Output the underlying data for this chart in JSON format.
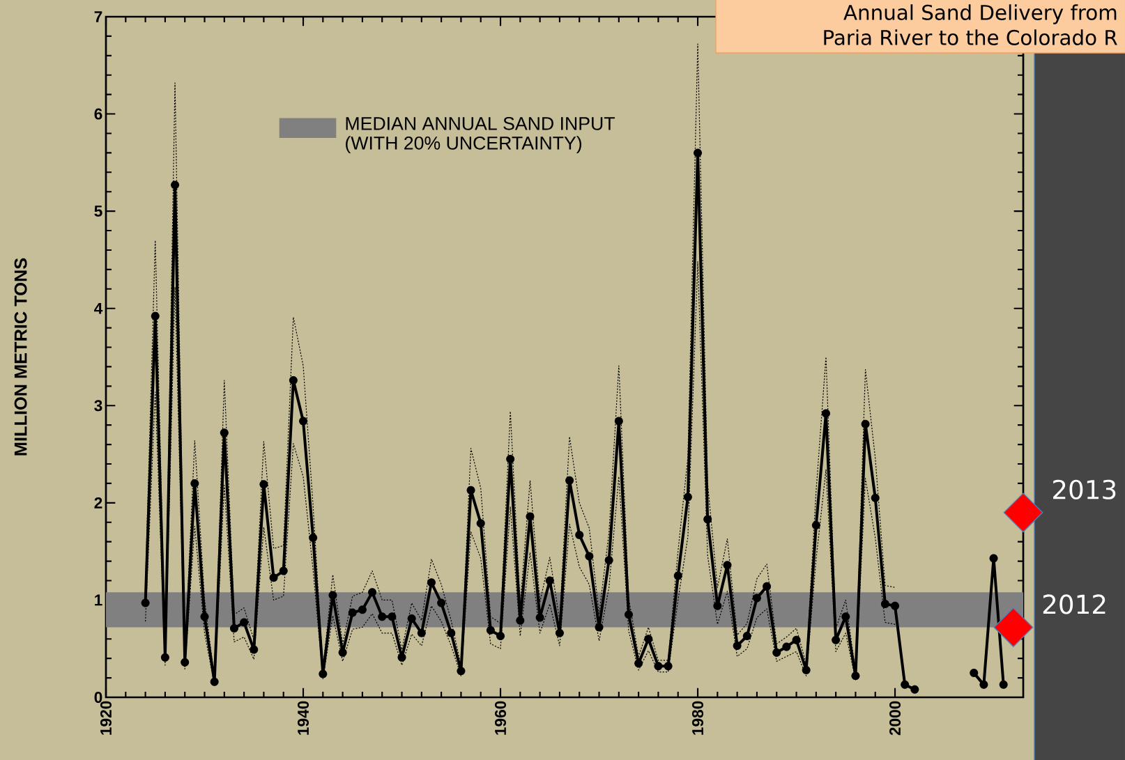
{
  "chart_data": {
    "type": "line",
    "title": "Annual Sand Delivery from",
    "subtitle": "Paria River to the Colorado R",
    "ylabel": "MILLION METRIC TONS",
    "x": [
      1924,
      1925,
      1926,
      1927,
      1928,
      1929,
      1930,
      1931,
      1932,
      1933,
      1934,
      1935,
      1936,
      1937,
      1938,
      1939,
      1940,
      1941,
      1942,
      1943,
      1944,
      1945,
      1946,
      1947,
      1948,
      1949,
      1950,
      1951,
      1952,
      1953,
      1954,
      1955,
      1956,
      1957,
      1958,
      1959,
      1960,
      1961,
      1962,
      1963,
      1964,
      1965,
      1966,
      1967,
      1968,
      1969,
      1970,
      1971,
      1972,
      1973,
      1974,
      1975,
      1976,
      1977,
      1978,
      1979,
      1980,
      1981,
      1982,
      1983,
      1984,
      1985,
      1986,
      1987,
      1988,
      1989,
      1990,
      1991,
      1992,
      1993,
      1994,
      1995,
      1996,
      1997,
      1998,
      1999,
      2000,
      2001,
      2002,
      2003,
      2004,
      2005,
      2006,
      2007,
      2008,
      2009,
      2010,
      2011
    ],
    "series": [
      {
        "color": "#000000",
        "marker": "circle",
        "values": [
          0.97,
          3.92,
          0.41,
          5.27,
          0.36,
          2.2,
          0.83,
          0.16,
          2.72,
          0.71,
          0.77,
          0.49,
          2.19,
          1.23,
          1.3,
          3.26,
          2.84,
          1.64,
          0.24,
          1.05,
          0.46,
          0.87,
          0.9,
          1.08,
          0.83,
          0.83,
          0.41,
          0.81,
          0.66,
          1.18,
          0.97,
          0.66,
          0.27,
          2.13,
          1.79,
          0.69,
          0.63,
          2.45,
          0.79,
          1.86,
          0.82,
          1.2,
          0.66,
          2.23,
          1.67,
          1.45,
          0.72,
          1.41,
          2.84,
          0.85,
          0.35,
          0.6,
          0.32,
          0.32,
          1.25,
          2.06,
          5.6,
          1.83,
          0.94,
          1.36,
          0.53,
          0.63,
          1.02,
          1.14,
          0.46,
          0.52,
          0.59,
          0.28,
          1.77,
          2.92,
          0.59,
          0.83,
          0.22,
          2.81,
          2.05,
          0.96,
          0.94,
          0.13,
          0.08,
          null,
          null,
          null,
          null,
          null,
          0.25,
          0.13,
          1.43,
          0.13
        ]
      },
      {
        "type": "line",
        "color": "#000000",
        "marker": "none",
        "line_style": "dotted",
        "values": [
          1.16,
          4.7,
          0.49,
          6.32,
          0.43,
          2.64,
          1.0,
          0.19,
          3.26,
          0.85,
          0.92,
          0.59,
          2.63,
          1.53,
          1.56,
          3.91,
          3.41,
          1.97,
          0.29,
          1.26,
          0.55,
          1.04,
          1.08,
          1.3,
          1.0,
          1.0,
          0.49,
          0.97,
          0.79,
          1.42,
          1.16,
          0.79,
          0.32,
          2.56,
          2.15,
          0.83,
          0.76,
          2.94,
          0.95,
          2.23,
          0.98,
          1.44,
          0.79,
          2.68,
          2.0,
          1.74,
          0.86,
          1.69,
          3.41,
          1.02,
          0.42,
          0.72,
          0.38,
          0.38,
          1.5,
          2.47,
          6.72,
          2.2,
          1.13,
          1.63,
          0.64,
          0.76,
          1.22,
          1.37,
          0.55,
          0.62,
          0.71,
          0.34,
          2.12,
          3.5,
          0.71,
          1.0,
          0.26,
          3.37,
          2.46,
          1.15,
          1.13,
          null,
          null,
          null,
          null,
          null,
          null,
          null,
          null,
          null,
          null,
          null
        ]
      },
      {
        "type": "line",
        "color": "#000000",
        "marker": "none",
        "line_style": "dotted",
        "values": [
          0.78,
          3.14,
          0.33,
          4.22,
          0.29,
          1.76,
          0.66,
          0.13,
          2.18,
          0.57,
          0.62,
          0.39,
          1.75,
          1.0,
          1.04,
          2.61,
          2.27,
          1.31,
          0.19,
          0.84,
          0.37,
          0.7,
          0.72,
          0.86,
          0.66,
          0.66,
          0.33,
          0.65,
          0.53,
          0.94,
          0.78,
          0.53,
          0.22,
          1.7,
          1.43,
          0.55,
          0.5,
          1.96,
          0.63,
          1.49,
          0.66,
          0.96,
          0.53,
          1.78,
          1.34,
          1.16,
          0.58,
          1.13,
          2.27,
          0.68,
          0.28,
          0.48,
          0.26,
          0.26,
          1.0,
          1.65,
          4.48,
          1.46,
          0.75,
          1.09,
          0.42,
          0.5,
          0.82,
          0.91,
          0.37,
          0.42,
          0.47,
          0.22,
          1.42,
          2.34,
          0.47,
          0.66,
          0.18,
          2.25,
          1.64,
          0.77,
          0.75,
          null,
          null,
          null,
          null,
          null,
          null,
          null,
          null,
          null,
          null,
          null
        ]
      },
      {
        "type": "scatter",
        "color": "#ff0000",
        "marker": "diamond",
        "x": [
          2012,
          2013
        ],
        "values": [
          0.72,
          1.9
        ]
      }
    ],
    "bands": [
      {
        "axis": "y",
        "from": 0.72,
        "to": 1.08,
        "label": "MEDIAN ANNUAL SAND INPUT (WITH 20% UNCERTAINTY)",
        "color": "#808080"
      }
    ],
    "annotations": [
      {
        "text": "2012",
        "x": 2012,
        "y": 0.72
      },
      {
        "text": "2013",
        "x": 2013,
        "y": 1.9
      }
    ],
    "legend": "top left",
    "xlim": [
      1920,
      2013
    ],
    "xticks": [
      1920,
      1940,
      1960,
      1980,
      2000
    ],
    "ylim": [
      0,
      7
    ],
    "yticks": [
      0,
      1,
      2,
      3,
      4,
      5,
      6,
      7
    ]
  }
}
